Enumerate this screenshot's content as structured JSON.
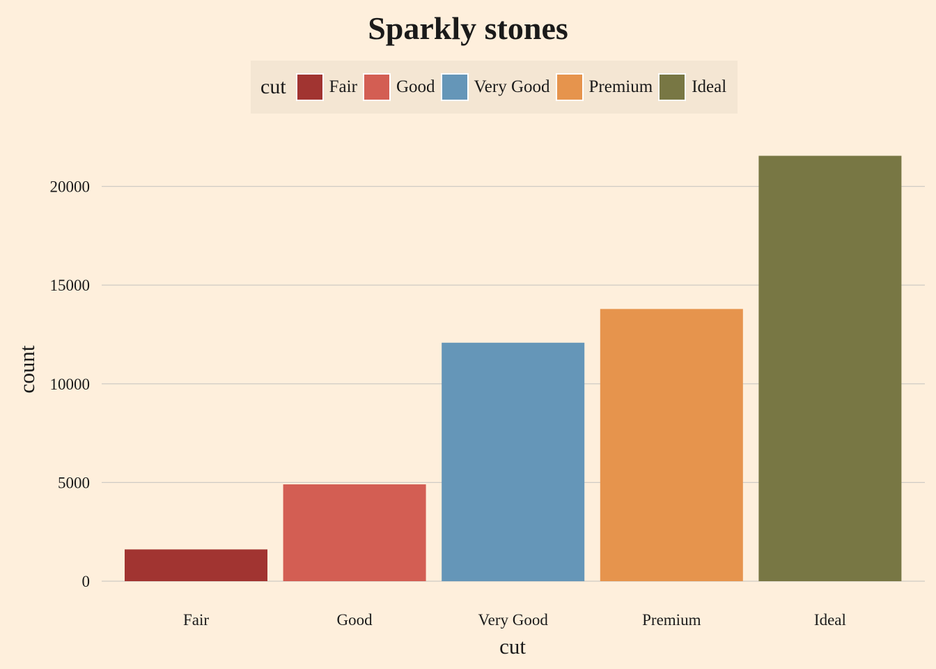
{
  "chart_data": {
    "type": "bar",
    "title": "Sparkly stones",
    "xlabel": "cut",
    "ylabel": "count",
    "categories": [
      "Fair",
      "Good",
      "Very Good",
      "Premium",
      "Ideal"
    ],
    "values": [
      1610,
      4906,
      12082,
      13791,
      21551
    ],
    "colors": [
      "#A13431",
      "#D35E53",
      "#6596B8",
      "#E6944D",
      "#787744"
    ],
    "ylim": [
      0,
      22000
    ],
    "yticks": [
      0,
      5000,
      10000,
      15000,
      20000
    ],
    "grid": "horizontal",
    "legend": {
      "title": "cut",
      "position": "top",
      "entries": [
        "Fair",
        "Good",
        "Very Good",
        "Premium",
        "Ideal"
      ]
    }
  }
}
